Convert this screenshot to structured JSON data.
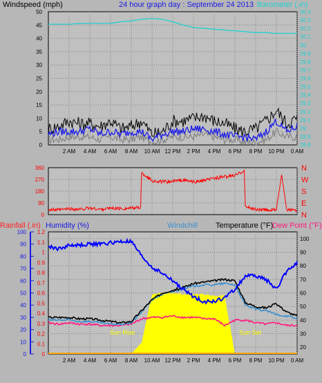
{
  "header": {
    "windspeed_label": "Windspeed (mph)",
    "title": "24 hour graph day : September 24 2013",
    "barometer_label": "Barometer (.in)"
  },
  "panel3_labels": {
    "rainfall": "Rainfall (.in)",
    "humidity": "Humidity (%)",
    "windchill": "Windchill",
    "temperature": "Temperature (°F)",
    "dewpoint": "Dew Point (°F)",
    "sunrise": "Sun Rise",
    "sunset": "Sun Set"
  },
  "colors": {
    "background": "#b7b7b7",
    "plot_bg": "#c0c0c0",
    "grid": "#808080",
    "windspeed_avg": "#1a1ae6",
    "windspeed_gust": "#000000",
    "windspeed_min": "#7a7a7a",
    "barometer": "#20d0d0",
    "wind_dir": "#ff0000",
    "humidity": "#0000ff",
    "windchill": "#3b8fd0",
    "temperature": "#000000",
    "dewpoint": "#ff1a80",
    "solar": "#ffff00",
    "rain": "#ffaa00"
  },
  "chart_data": [
    {
      "type": "line",
      "name": "wind-barometer",
      "x_ticks": [
        "2 AM",
        "4 AM",
        "6 AM",
        "8 AM",
        "10 AM",
        "12 PM",
        "2 PM",
        "4 PM",
        "6 PM",
        "8 PM",
        "10 PM",
        "0 AM"
      ],
      "y_left_ticks": [
        0,
        5,
        10,
        15,
        20,
        25,
        30,
        35,
        40,
        45,
        50
      ],
      "y_left_range": [
        0,
        50
      ],
      "y_right_ticks": [
        "28.8",
        "28.9",
        "29",
        "29.1",
        "29.2",
        "29.3",
        "29.4",
        "29.5",
        "29.6",
        "29.7",
        "29.8",
        "29.9",
        "30",
        "30.1",
        "30.2",
        "30.3",
        "30.4"
      ],
      "y_right_range": [
        28.8,
        30.4
      ],
      "hours": [
        0,
        1,
        2,
        3,
        4,
        5,
        6,
        7,
        8,
        9,
        10,
        11,
        12,
        13,
        14,
        15,
        16,
        17,
        18,
        19,
        20,
        21,
        22,
        23,
        24
      ],
      "series": [
        {
          "key": "gust",
          "values": [
            6,
            7,
            9,
            8,
            8,
            7,
            9,
            6,
            7,
            9,
            4,
            5,
            9,
            9,
            10,
            11,
            9,
            8,
            6,
            5,
            6,
            9,
            13,
            8,
            10
          ]
        },
        {
          "key": "average",
          "values": [
            4,
            5,
            5,
            5,
            6,
            4,
            5,
            4,
            5,
            5,
            2,
            4,
            5,
            5,
            6,
            6,
            5,
            4,
            3,
            3,
            2,
            5,
            9,
            5,
            7
          ]
        },
        {
          "key": "minimum",
          "values": [
            2,
            2,
            3,
            3,
            3,
            2,
            3,
            2,
            2,
            3,
            1,
            2,
            3,
            3,
            3,
            4,
            3,
            2,
            2,
            1,
            1,
            2,
            5,
            3,
            3
          ]
        },
        {
          "key": "barometer",
          "values": [
            30.25,
            30.25,
            30.25,
            30.26,
            30.26,
            30.26,
            30.26,
            30.28,
            30.29,
            30.31,
            30.32,
            30.31,
            30.28,
            30.24,
            30.21,
            30.2,
            30.19,
            30.18,
            30.17,
            30.16,
            30.15,
            30.15,
            30.14,
            30.14,
            30.14
          ]
        }
      ]
    },
    {
      "type": "line",
      "name": "wind-direction",
      "y_ticks": [
        0,
        90,
        180,
        270,
        360
      ],
      "y_range": [
        0,
        360
      ],
      "compass_labels": [
        "N",
        "W",
        "S",
        "E",
        "N"
      ],
      "hours": [
        0,
        1,
        2,
        3,
        4,
        5,
        6,
        7,
        8,
        8.9,
        9,
        10,
        11,
        12,
        13,
        14,
        15,
        16,
        17,
        18,
        18.9,
        19,
        20,
        21,
        22,
        22.5,
        23,
        24
      ],
      "values": [
        40,
        35,
        45,
        40,
        50,
        40,
        50,
        45,
        50,
        55,
        320,
        260,
        250,
        255,
        265,
        250,
        260,
        280,
        290,
        300,
        340,
        60,
        40,
        35,
        40,
        300,
        40,
        35
      ]
    },
    {
      "type": "line",
      "name": "temperature-humidity",
      "y_left_humidity_ticks": [
        0,
        10,
        20,
        30,
        40,
        50,
        60,
        70,
        80,
        90,
        100
      ],
      "y_left_rain_ticks": [
        0,
        0.1,
        0.2,
        0.3,
        0.4,
        0.5,
        0.6,
        0.7,
        0.8,
        0.9,
        1,
        1.1,
        1.2
      ],
      "y_right_ticks": [
        20,
        30,
        40,
        50,
        60,
        70,
        80,
        90,
        100
      ],
      "y_right_range": [
        15,
        105
      ],
      "hours": [
        0,
        1,
        2,
        3,
        4,
        5,
        6,
        7,
        8,
        9,
        10,
        11,
        12,
        13,
        14,
        15,
        16,
        17,
        18,
        19,
        20,
        21,
        22,
        23,
        24
      ],
      "series": [
        {
          "key": "humidity",
          "unit": "%",
          "values": [
            88,
            86,
            89,
            89,
            90,
            90,
            91,
            92,
            92,
            80,
            71,
            66,
            60,
            53,
            47,
            43,
            43,
            46,
            53,
            64,
            64,
            61,
            53,
            68,
            75
          ]
        },
        {
          "key": "temperature",
          "unit": "°F",
          "values": [
            42,
            42,
            42,
            41,
            41,
            40,
            39,
            38,
            39,
            47,
            55,
            60,
            62,
            64,
            67,
            68,
            69,
            70,
            69,
            53,
            50,
            49,
            52,
            46,
            43
          ]
        },
        {
          "key": "windchill",
          "unit": "°F",
          "values": [
            40,
            40,
            40,
            39,
            39,
            38,
            37,
            37,
            38,
            46,
            55,
            59,
            61,
            63,
            65,
            66,
            66,
            67,
            66,
            51,
            48,
            47,
            44,
            43,
            41
          ]
        },
        {
          "key": "dewpoint",
          "unit": "°F",
          "values": [
            38,
            37,
            38,
            37,
            37,
            36,
            36,
            36,
            37,
            41,
            42,
            42,
            43,
            42,
            42,
            41,
            41,
            36,
            40,
            40,
            38,
            37,
            38,
            36,
            36
          ]
        },
        {
          "key": "solar",
          "values": [
            0,
            0,
            0,
            0,
            0,
            0,
            0,
            0,
            0,
            8,
            44,
            45,
            45,
            44,
            44,
            44,
            43,
            43,
            0,
            0,
            0,
            0,
            0,
            0,
            0
          ]
        }
      ]
    }
  ]
}
